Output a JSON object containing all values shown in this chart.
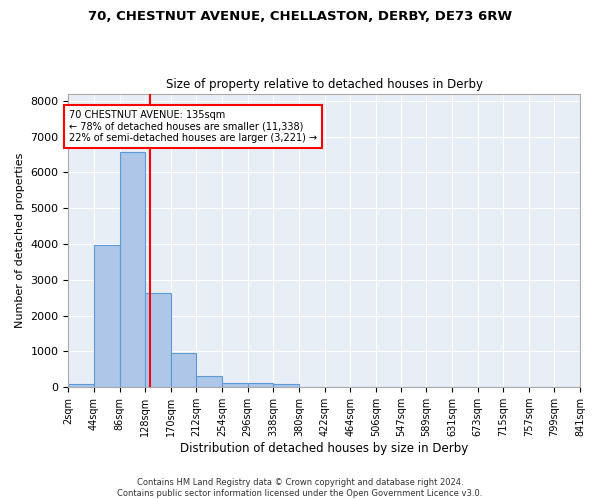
{
  "title_line1": "70, CHESTNUT AVENUE, CHELLASTON, DERBY, DE73 6RW",
  "title_line2": "Size of property relative to detached houses in Derby",
  "xlabel": "Distribution of detached houses by size in Derby",
  "ylabel": "Number of detached properties",
  "footer_line1": "Contains HM Land Registry data © Crown copyright and database right 2024.",
  "footer_line2": "Contains public sector information licensed under the Open Government Licence v3.0.",
  "annotation_line1": "70 CHESTNUT AVENUE: 135sqm",
  "annotation_line2": "← 78% of detached houses are smaller (11,338)",
  "annotation_line3": "22% of semi-detached houses are larger (3,221) →",
  "bar_color": "#aec6e8",
  "bar_edge_color": "#5b9bd5",
  "vline_color": "red",
  "annotation_box_edge_color": "red",
  "bin_edges": [
    2,
    44,
    86,
    128,
    170,
    212,
    254,
    296,
    338,
    380,
    422,
    464,
    506,
    547,
    589,
    631,
    673,
    715,
    757,
    799,
    841
  ],
  "bar_heights": [
    80,
    3980,
    6580,
    2620,
    960,
    310,
    130,
    110,
    90,
    0,
    0,
    0,
    0,
    0,
    0,
    0,
    0,
    0,
    0,
    0
  ],
  "vline_x": 135,
  "ylim": [
    0,
    8200
  ],
  "yticks": [
    0,
    1000,
    2000,
    3000,
    4000,
    5000,
    6000,
    7000,
    8000
  ],
  "background_color": "#e8eef5",
  "grid_color": "white"
}
